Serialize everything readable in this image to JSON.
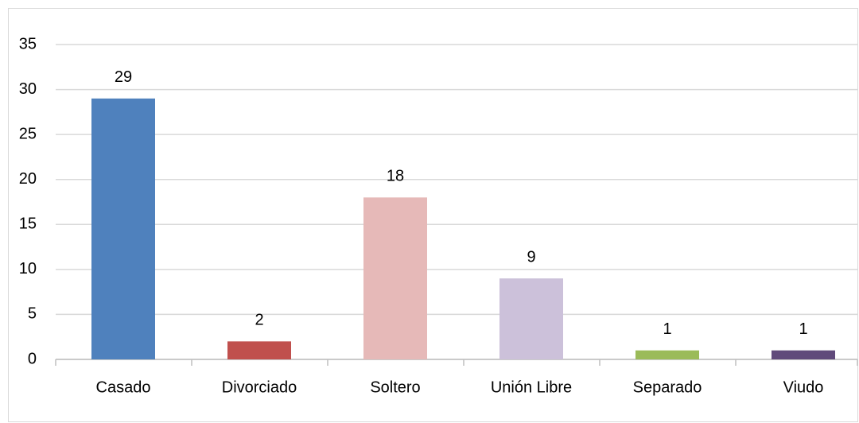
{
  "chart_data": {
    "type": "bar",
    "categories": [
      "Casado",
      "Divorciado",
      "Soltero",
      "Unión Libre",
      "Separado",
      "Viudo"
    ],
    "values": [
      29,
      2,
      18,
      9,
      1,
      1
    ],
    "colors": [
      "#4f81bd",
      "#c0504d",
      "#e6b9b8",
      "#ccc1da",
      "#9bbb59",
      "#604a7b"
    ],
    "ylim": [
      0,
      35
    ],
    "yticks": [
      0,
      5,
      10,
      15,
      20,
      25,
      30,
      35
    ],
    "grid": true
  }
}
